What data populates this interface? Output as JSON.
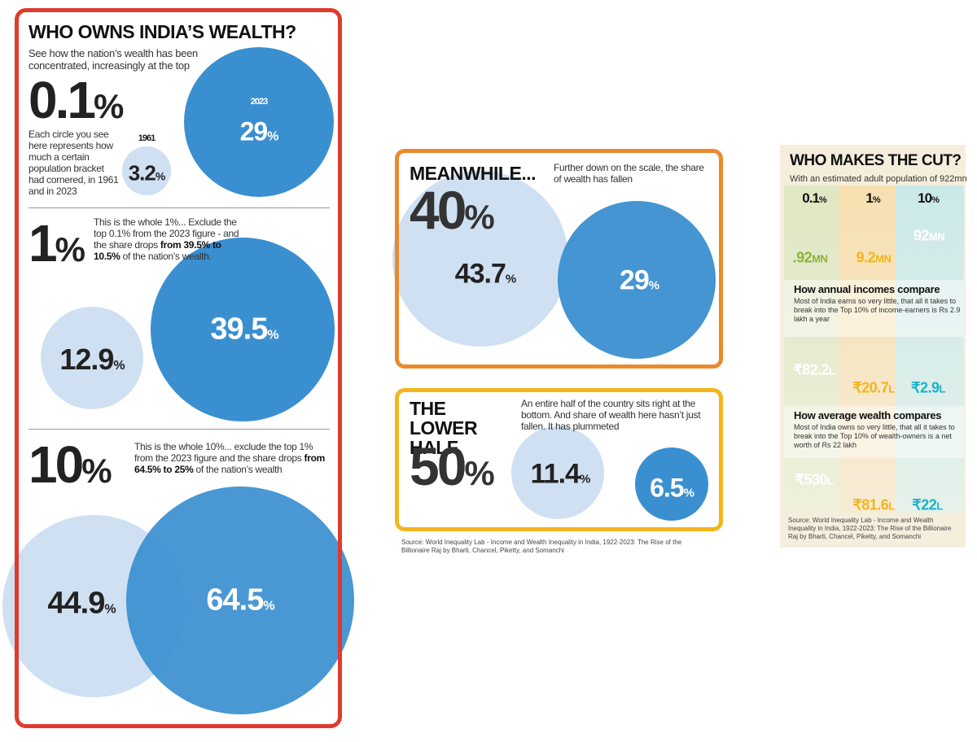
{
  "who_owns": {
    "title": "WHO OWNS INDIA’S WEALTH?",
    "subtitle": "See how the nation’s wealth has been concentrated, increasingly at the top",
    "sections": [
      {
        "figure": "0.1",
        "unit": "%",
        "text": [
          "Each circle you see here represents how much a certain population bracket had cornered, in 1961 and in 2023"
        ],
        "circles": [
          {
            "label": "1961",
            "value": "3.2",
            "unit": "%"
          },
          {
            "label": "2023",
            "value": "29",
            "unit": "%"
          }
        ]
      },
      {
        "figure": "1",
        "unit": "%",
        "text": [
          "This is the whole 1%... Exclude the top 0.1% from the 2023 figure - and the share drops ",
          "from 39.5% to 10.5%",
          " of the nation’s wealth."
        ],
        "circles": [
          {
            "value": "12.9",
            "unit": "%"
          },
          {
            "value": "39.5",
            "unit": "%"
          }
        ]
      },
      {
        "figure": "10",
        "unit": "%",
        "text": [
          "This is the whole 10%... exclude the top 1% from the 2023 figure and the share drops ",
          "from 64.5% to 25%",
          " of the nation’s wealth"
        ],
        "circles": [
          {
            "value": "44.9",
            "unit": "%"
          },
          {
            "value": "64.5",
            "unit": "%"
          }
        ]
      }
    ]
  },
  "meanwhile": {
    "heading": "MEANWHILE...",
    "figure": "40",
    "unit": "%",
    "text": "Further down on the scale, the share of wealth has fallen",
    "circles": [
      {
        "value": "43.7",
        "unit": "%"
      },
      {
        "value": "29",
        "unit": "%"
      }
    ]
  },
  "lower_half": {
    "heading": "THE LOWER HALF",
    "figure": "50",
    "unit": "%",
    "text": "An entire half of the country sits right at the bottom. And share of wealth here hasn’t just fallen. It has plummeted",
    "circles": [
      {
        "value": "11.4",
        "unit": "%"
      },
      {
        "value": "6.5",
        "unit": "%"
      }
    ]
  },
  "source": "Source: World Inequality Lab - Income and Wealth Inequality in India, 1922-2023: The Rise of the Billionaire Raj by Bharti, Chancel, Piketty, and Somanchi",
  "who_makes_cut": {
    "title": "WHO MAKES THE CUT?",
    "subtitle": "With an estimated adult population of 922mn",
    "columns": [
      {
        "value": "0.1",
        "unit": "%"
      },
      {
        "value": "1",
        "unit": "%"
      },
      {
        "value": "10",
        "unit": "%"
      }
    ],
    "rows": [
      {
        "values": [
          {
            "value": ".92",
            "unit": "MN"
          },
          {
            "value": "9.2",
            "unit": "MN"
          },
          {
            "value": "92",
            "unit": "MN"
          }
        ]
      },
      {
        "heading": "How annual incomes compare",
        "text": "Most of India earns so very little, that all it takes to break into the Top 10% of income-earners is Rs 2.9 lakh a year",
        "values": [
          {
            "value": "₹82.2",
            "unit": "L"
          },
          {
            "value": "₹20.7",
            "unit": "L"
          },
          {
            "value": "₹2.9",
            "unit": "L"
          }
        ]
      },
      {
        "heading": "How average wealth compares",
        "text": "Most of India owns so very little, that all it takes to break into the Top 10% of wealth-owners is a net worth of Rs 22 lakh",
        "values": [
          {
            "value": "₹530",
            "unit": "L"
          },
          {
            "value": "₹81.6",
            "unit": "L"
          },
          {
            "value": "₹22",
            "unit": "L"
          }
        ]
      }
    ],
    "source": "Source: World Inequality Lab - Income and Wealth Inequality in India, 1922-2023: The Rise of the Billionaire Raj by Bharti, Chancel, Piketty, and Somanchi"
  }
}
